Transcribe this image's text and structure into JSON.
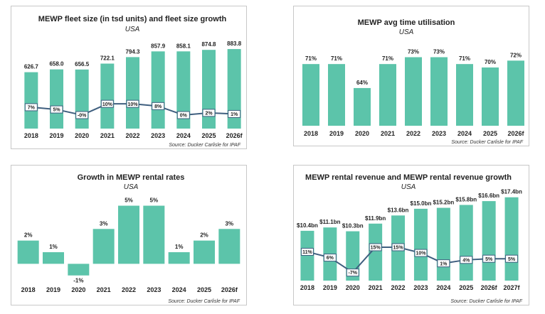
{
  "colors": {
    "bar": "#5cc4aa",
    "line": "#3f5f7f",
    "box_border": "#3f5f7f",
    "text": "#222222"
  },
  "chart_data": [
    {
      "id": "fleet",
      "type": "bar",
      "title": "MEWP fleet size (in tsd units) and fleet size growth",
      "subtitle": "USA",
      "source": "Source: Ducker Carlisle for IPAF",
      "categories": [
        "2018",
        "2019",
        "2020",
        "2021",
        "2022",
        "2023",
        "2024",
        "2025",
        "2026f"
      ],
      "values": [
        626.7,
        658.0,
        656.5,
        722.1,
        794.3,
        857.9,
        858.1,
        874.8,
        883.8
      ],
      "value_labels": [
        "626.7",
        "658.0",
        "656.5",
        "722.1",
        "794.3",
        "857.9",
        "858.1",
        "874.8",
        "883.8"
      ],
      "ylim": [
        0,
        900
      ],
      "line_series": {
        "values": [
          7,
          5,
          0,
          10,
          10,
          8,
          0,
          2,
          1
        ],
        "labels": [
          "7%",
          "5%",
          "-0%",
          "10%",
          "10%",
          "8%",
          "0%",
          "2%",
          "1%"
        ],
        "ylim": [
          -12,
          60
        ]
      }
    },
    {
      "id": "util",
      "type": "bar",
      "title": "MEWP avg time utilisation",
      "subtitle": "USA",
      "source": "Source: Ducker Carlisle for IPAF",
      "categories": [
        "2018",
        "2019",
        "2020",
        "2021",
        "2022",
        "2023",
        "2024",
        "2025",
        "2026f"
      ],
      "values": [
        71,
        71,
        64,
        71,
        73,
        73,
        71,
        70,
        72
      ],
      "value_labels": [
        "71%",
        "71%",
        "64%",
        "71%",
        "73%",
        "73%",
        "71%",
        "70%",
        "72%"
      ],
      "ylim": [
        53,
        75.8
      ]
    },
    {
      "id": "rates",
      "type": "bar",
      "title": "Growth in MEWP rental rates",
      "subtitle": "USA",
      "source": "Source: Ducker Carlisle for IPAF",
      "categories": [
        "2018",
        "2019",
        "2020",
        "2021",
        "2022",
        "2023",
        "2024",
        "2025",
        "2026f"
      ],
      "values": [
        2,
        1,
        -1,
        3,
        5,
        5,
        1,
        2,
        3
      ],
      "value_labels": [
        "2%",
        "1%",
        "-1%",
        "3%",
        "5%",
        "5%",
        "1%",
        "2%",
        "3%"
      ],
      "ylim": [
        -1.2,
        5.4
      ]
    },
    {
      "id": "revenue",
      "type": "bar",
      "title": "MEWP rental revenue and MEWP rental revenue growth",
      "subtitle": "USA",
      "source": "Source: Ducker Carlisle for IPAF",
      "categories": [
        "2018",
        "2019",
        "2020",
        "2021",
        "2022",
        "2023",
        "2024",
        "2025",
        "2026f",
        "2027f"
      ],
      "values": [
        10.4,
        11.1,
        10.3,
        11.9,
        13.6,
        15.0,
        15.2,
        15.8,
        16.6,
        17.4
      ],
      "value_labels": [
        "$10.4bn",
        "$11.1bn",
        "$10.3bn",
        "$11.9bn",
        "$13.6bn",
        "$15.0bn",
        "$15.2bn",
        "$15.8bn",
        "$16.6bn",
        "$17.4bn"
      ],
      "ylim": [
        0,
        17.8
      ],
      "line_series": {
        "values": [
          11,
          6,
          -7,
          15,
          15,
          10,
          1,
          4,
          5,
          5
        ],
        "labels": [
          "11%",
          "6%",
          "-7%",
          "15%",
          "15%",
          "10%",
          "1%",
          "4%",
          "5%",
          "5%"
        ],
        "ylim": [
          -14,
          60
        ]
      }
    }
  ]
}
